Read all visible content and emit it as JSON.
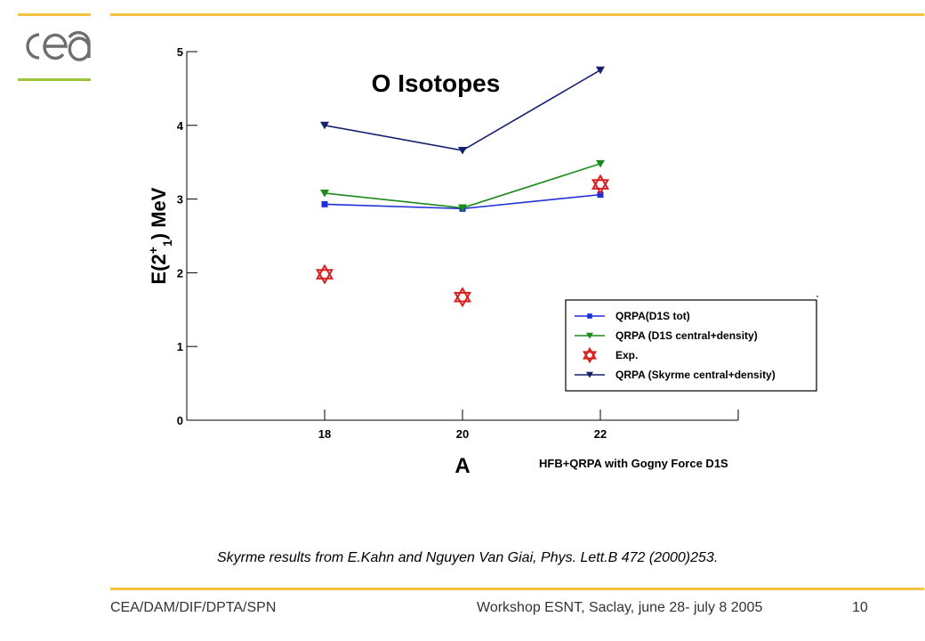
{
  "colors": {
    "accent_yellow": "#f5c342",
    "accent_green": "#9cc43c",
    "logo_gray": "#6d6e71"
  },
  "logo": {
    "name": "cea-logo",
    "text": "cea"
  },
  "chart_data": {
    "type": "line",
    "title": "O Isotopes",
    "xlabel": "A",
    "ylabel": "E(2+1) MeV",
    "ylabel_parts": {
      "main": "E(2",
      "sup": "+",
      "sub": "1",
      "end": ") MeV"
    },
    "annotation": "HFB+QRPA with Gogny Force D1S",
    "xlim": [
      16,
      24
    ],
    "ylim": [
      0,
      5
    ],
    "x_ticks": [
      18,
      20,
      22
    ],
    "y_ticks": [
      0,
      1,
      2,
      3,
      4,
      5
    ],
    "grid": false,
    "legend_position": "right",
    "series": [
      {
        "name": "QRPA(D1S tot)",
        "marker": "square",
        "color": "#1f2fd6",
        "x": [
          18,
          20,
          22
        ],
        "y": [
          2.93,
          2.87,
          3.06
        ],
        "line": true
      },
      {
        "name": "QRPA (D1S central+density)",
        "marker": "triangle-down",
        "color": "#1a8a1a",
        "x": [
          18,
          20,
          22
        ],
        "y": [
          3.08,
          2.88,
          3.48
        ],
        "line": true
      },
      {
        "name": "Exp.",
        "marker": "star",
        "color": "#d62020",
        "x": [
          18,
          20,
          22
        ],
        "y": [
          1.98,
          1.67,
          3.2
        ],
        "line": false
      },
      {
        "name": "QRPA (Skyrme central+density)",
        "marker": "triangle-down",
        "color": "#14206e",
        "x": [
          18,
          20,
          22
        ],
        "y": [
          4.0,
          3.66,
          4.75
        ],
        "line": true
      }
    ]
  },
  "caption": "Skyrme results from E.Kahn and Nguyen Van Giai, Phys. Lett.B 472 (2000)253.",
  "footer": {
    "left": "CEA/DAM/DIF/DPTA/SPN",
    "center": "Workshop ESNT, Saclay,  june 28- july 8 2005",
    "page": "10"
  }
}
